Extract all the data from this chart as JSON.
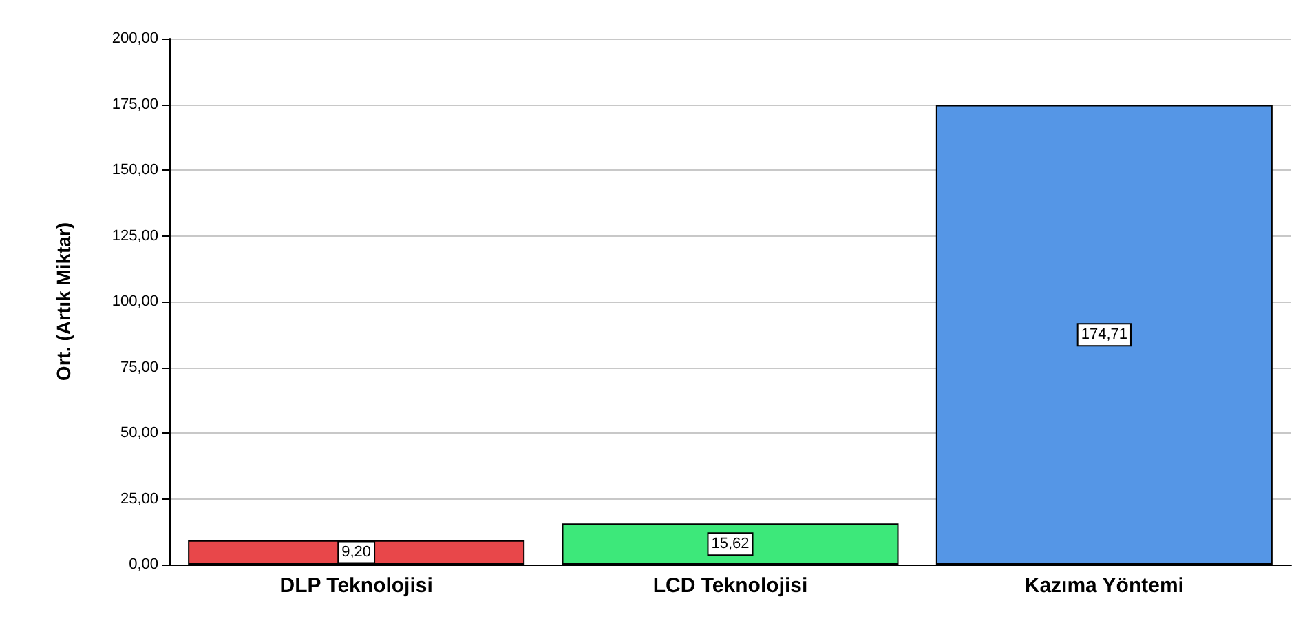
{
  "chart_data": {
    "type": "bar",
    "ylabel": "Ort. (Artık Miktar)",
    "categories": [
      "DLP Teknolojisi",
      "LCD Teknolojisi",
      "Kazıma Yöntemi"
    ],
    "values": [
      9.2,
      15.62,
      174.71
    ],
    "colors": [
      "#e8474a",
      "#3de87a",
      "#5596e6"
    ],
    "value_labels": [
      "9,20",
      "15,62",
      "174,71"
    ],
    "ylim": [
      0,
      200
    ],
    "yticks": [
      {
        "value": 0,
        "label": "0,00"
      },
      {
        "value": 25,
        "label": "25,00"
      },
      {
        "value": 50,
        "label": "50,00"
      },
      {
        "value": 75,
        "label": "75,00"
      },
      {
        "value": 100,
        "label": "100,00"
      },
      {
        "value": 125,
        "label": "125,00"
      },
      {
        "value": 150,
        "label": "150,00"
      },
      {
        "value": 175,
        "label": "175,00"
      },
      {
        "value": 200,
        "label": "200,00"
      }
    ],
    "grid": "y"
  }
}
